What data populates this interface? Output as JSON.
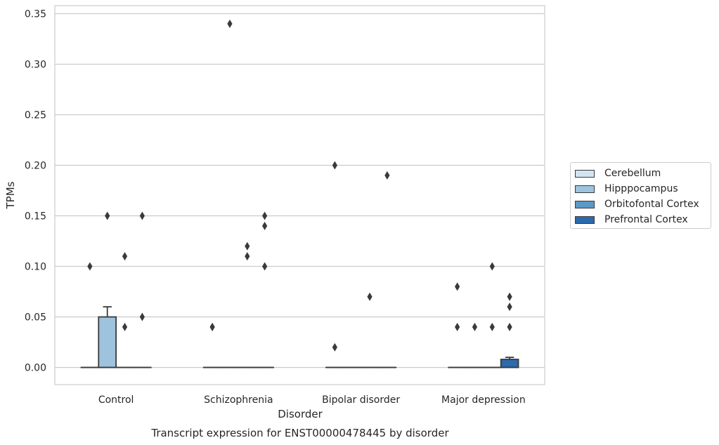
{
  "chart_data": {
    "type": "box",
    "title": "Transcript expression for ENST00000478445 by disorder",
    "xlabel": "Disorder",
    "ylabel": "TPMs",
    "ylim": [
      -0.017,
      0.358
    ],
    "yticks": [
      0.0,
      0.05,
      0.1,
      0.15,
      0.2,
      0.25,
      0.3,
      0.35
    ],
    "ytick_labels": [
      "0.00",
      "0.05",
      "0.10",
      "0.15",
      "0.20",
      "0.25",
      "0.30",
      "0.35"
    ],
    "categories": [
      "Control",
      "Schizophrenia",
      "Bipolar disorder",
      "Major depression"
    ],
    "grid": true,
    "legend_position": "right",
    "series": [
      {
        "name": "Cerebellum",
        "color": "#d4e3f1",
        "boxes": [
          {
            "q1": 0,
            "median": 0,
            "q3": 0,
            "whisker_low": 0,
            "whisker_high": 0,
            "outliers": [
              0.1
            ]
          },
          {
            "q1": 0,
            "median": 0,
            "q3": 0,
            "whisker_low": 0,
            "whisker_high": 0,
            "outliers": [
              0.04,
              0.04
            ]
          },
          {
            "q1": 0,
            "median": 0,
            "q3": 0,
            "whisker_low": 0,
            "whisker_high": 0,
            "outliers": [
              0.2,
              0.02
            ]
          },
          {
            "q1": 0,
            "median": 0,
            "q3": 0,
            "whisker_low": 0,
            "whisker_high": 0,
            "outliers": [
              0.08,
              0.04
            ]
          }
        ]
      },
      {
        "name": "Hipppocampus",
        "color": "#9dc3de",
        "boxes": [
          {
            "q1": 0,
            "median": 0,
            "q3": 0.05,
            "whisker_low": 0,
            "whisker_high": 0.06,
            "outliers": [
              0.15
            ]
          },
          {
            "q1": 0,
            "median": 0,
            "q3": 0,
            "whisker_low": 0,
            "whisker_high": 0,
            "outliers": [
              0.34
            ]
          },
          {
            "q1": 0,
            "median": 0,
            "q3": 0,
            "whisker_low": 0,
            "whisker_high": 0,
            "outliers": []
          },
          {
            "q1": 0,
            "median": 0,
            "q3": 0,
            "whisker_low": 0,
            "whisker_high": 0,
            "outliers": [
              0.04
            ]
          }
        ]
      },
      {
        "name": "Orbitofontal Cortex",
        "color": "#5a9ac8",
        "boxes": [
          {
            "q1": 0,
            "median": 0,
            "q3": 0,
            "whisker_low": 0,
            "whisker_high": 0,
            "outliers": [
              0.11,
              0.04
            ]
          },
          {
            "q1": 0,
            "median": 0,
            "q3": 0,
            "whisker_low": 0,
            "whisker_high": 0,
            "outliers": [
              0.12,
              0.11
            ]
          },
          {
            "q1": 0,
            "median": 0,
            "q3": 0,
            "whisker_low": 0,
            "whisker_high": 0,
            "outliers": [
              0.07
            ]
          },
          {
            "q1": 0,
            "median": 0,
            "q3": 0,
            "whisker_low": 0,
            "whisker_high": 0,
            "outliers": [
              0.1,
              0.04
            ]
          }
        ]
      },
      {
        "name": "Prefrontal Cortex",
        "color": "#2a6aad",
        "boxes": [
          {
            "q1": 0,
            "median": 0,
            "q3": 0,
            "whisker_low": 0,
            "whisker_high": 0,
            "outliers": [
              0.15,
              0.05
            ]
          },
          {
            "q1": 0,
            "median": 0,
            "q3": 0,
            "whisker_low": 0,
            "whisker_high": 0,
            "outliers": [
              0.15,
              0.14,
              0.1
            ]
          },
          {
            "q1": 0,
            "median": 0,
            "q3": 0,
            "whisker_low": 0,
            "whisker_high": 0,
            "outliers": [
              0.19
            ]
          },
          {
            "q1": 0,
            "median": 0,
            "q3": 0.008,
            "whisker_low": 0,
            "whisker_high": 0.01,
            "outliers": [
              0.07,
              0.06,
              0.04
            ]
          }
        ]
      }
    ]
  }
}
